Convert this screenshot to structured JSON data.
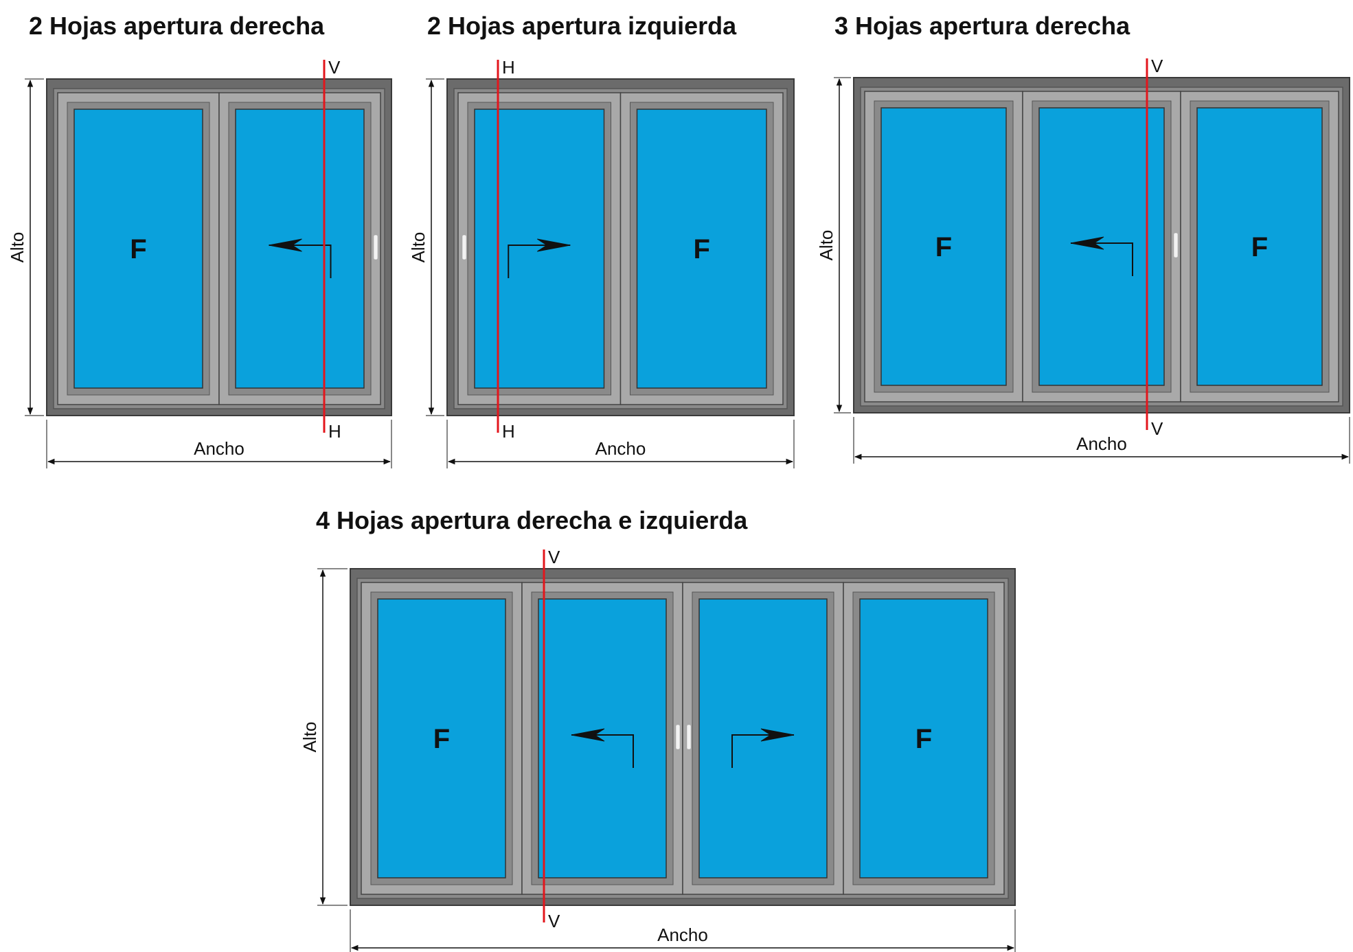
{
  "colors": {
    "outer_frame": "#6b6b6b",
    "frame_light": "#a9a9a9",
    "frame_mid": "#8a8a8a",
    "glass": "#0aa1dc",
    "cut_line": "#e3161c",
    "dimension": "#111111",
    "handle": "#f2f2f2"
  },
  "labels": {
    "width": "Ancho",
    "height": "Alto",
    "fixed": "F",
    "vertical_mark": "V",
    "horizontal_mark": "H"
  },
  "diagrams": [
    {
      "id": "two-leaf-right",
      "title": "2 Hojas apertura derecha",
      "leaf_count": 2,
      "leaves": [
        {
          "type": "fixed",
          "label": "F"
        },
        {
          "type": "sliding",
          "direction": "left"
        }
      ],
      "cut_line": {
        "top_label": "V",
        "bottom_label": "H"
      }
    },
    {
      "id": "two-leaf-left",
      "title": "2 Hojas apertura izquierda",
      "leaf_count": 2,
      "leaves": [
        {
          "type": "sliding",
          "direction": "right"
        },
        {
          "type": "fixed",
          "label": "F"
        }
      ],
      "cut_line": {
        "top_label": "H",
        "bottom_label": "H"
      }
    },
    {
      "id": "three-leaf-right",
      "title": "3 Hojas apertura derecha",
      "leaf_count": 3,
      "leaves": [
        {
          "type": "fixed",
          "label": "F"
        },
        {
          "type": "sliding",
          "direction": "left"
        },
        {
          "type": "fixed",
          "label": "F"
        }
      ],
      "cut_line": {
        "top_label": "V",
        "bottom_label": "V"
      }
    },
    {
      "id": "four-leaf-right-left",
      "title": "4 Hojas apertura derecha e izquierda",
      "leaf_count": 4,
      "leaves": [
        {
          "type": "fixed",
          "label": "F"
        },
        {
          "type": "sliding",
          "direction": "left"
        },
        {
          "type": "sliding",
          "direction": "right"
        },
        {
          "type": "fixed",
          "label": "F"
        }
      ],
      "cut_line": {
        "top_label": "V",
        "bottom_label": "V"
      }
    }
  ]
}
